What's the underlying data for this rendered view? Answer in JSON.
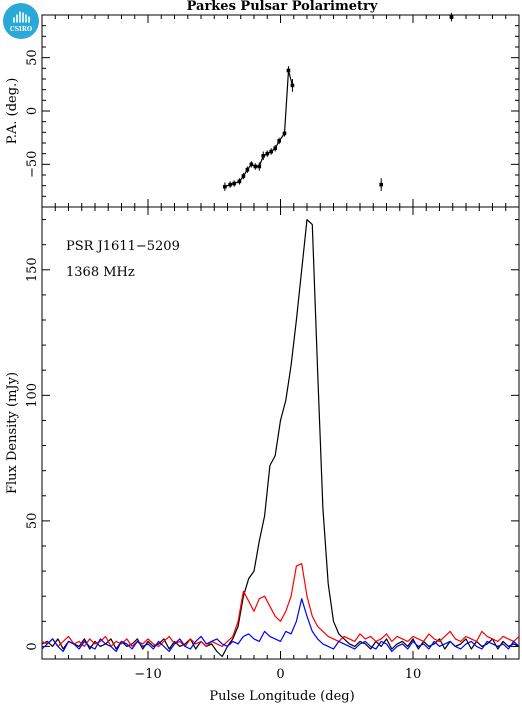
{
  "logo": {
    "text": "CSIRO",
    "color": "#2aa8d8"
  },
  "chart_data": [
    {
      "type": "scatter",
      "title": "Parkes Pulsar Polarimetry",
      "ylabel": "P.A. (deg.)",
      "xlim": [
        -18,
        18
      ],
      "ylim": [
        -90,
        90
      ],
      "yticks": [
        -50,
        0,
        50
      ],
      "points": [
        {
          "x": -4.2,
          "y": -71,
          "err": 4
        },
        {
          "x": -3.8,
          "y": -69,
          "err": 3
        },
        {
          "x": -3.5,
          "y": -68,
          "err": 3
        },
        {
          "x": -3.1,
          "y": -66,
          "err": 3
        },
        {
          "x": -2.8,
          "y": -61,
          "err": 3
        },
        {
          "x": -2.5,
          "y": -55,
          "err": 3
        },
        {
          "x": -2.2,
          "y": -50,
          "err": 3
        },
        {
          "x": -1.9,
          "y": -52,
          "err": 3
        },
        {
          "x": -1.6,
          "y": -52,
          "err": 4
        },
        {
          "x": -1.3,
          "y": -42,
          "err": 4
        },
        {
          "x": -1.0,
          "y": -40,
          "err": 3
        },
        {
          "x": -0.7,
          "y": -38,
          "err": 3
        },
        {
          "x": -0.4,
          "y": -35,
          "err": 3
        },
        {
          "x": -0.1,
          "y": -28,
          "err": 3
        },
        {
          "x": 0.3,
          "y": -21,
          "err": 3
        },
        {
          "x": 0.6,
          "y": 38,
          "err": 4
        },
        {
          "x": 0.9,
          "y": 24,
          "err": 6
        }
      ],
      "isolated_points": [
        {
          "x": 7.6,
          "y": -69,
          "err": 6
        },
        {
          "x": 12.9,
          "y": 88,
          "err": 4
        }
      ]
    },
    {
      "type": "line",
      "xlabel": "Pulse Longitude (deg)",
      "ylabel": "Flux Density (mJy)",
      "annotations": [
        "PSR J1611−5209",
        "1368 MHz"
      ],
      "xlim": [
        -18,
        18
      ],
      "ylim": [
        -5,
        175
      ],
      "xticks": [
        -10,
        0,
        10
      ],
      "yticks": [
        0,
        50,
        100,
        150
      ],
      "x_start": -18,
      "x_step": 0.4,
      "series": [
        {
          "color": "#000000",
          "values": [
            1,
            2,
            0,
            3,
            -1,
            2,
            1,
            0,
            3,
            -1,
            2,
            0,
            1,
            3,
            -1,
            2,
            0,
            1,
            3,
            -1,
            2,
            0,
            1,
            3,
            -1,
            2,
            0,
            1,
            3,
            -1,
            2,
            0,
            1,
            -2,
            -4,
            0,
            3,
            8,
            20,
            27,
            30,
            42,
            52,
            72,
            76,
            90,
            98,
            112,
            130,
            150,
            170,
            168,
            110,
            55,
            25,
            10,
            5,
            3,
            1,
            0,
            2,
            1,
            -1,
            2,
            0,
            3,
            -1,
            1,
            2,
            0,
            3,
            -1,
            2,
            0,
            1,
            3,
            -1,
            2,
            0,
            1,
            3,
            -1,
            2,
            0,
            1,
            3,
            -1,
            2,
            0,
            1,
            0
          ]
        },
        {
          "color": "#ff0000",
          "values": [
            2,
            1,
            3,
            0,
            2,
            4,
            1,
            2,
            0,
            3,
            1,
            2,
            4,
            0,
            2,
            1,
            3,
            0,
            2,
            1,
            3,
            1,
            0,
            2,
            4,
            1,
            2,
            0,
            3,
            1,
            2,
            0,
            2,
            1,
            0,
            2,
            4,
            10,
            22,
            18,
            14,
            19,
            20,
            16,
            12,
            10,
            14,
            20,
            32,
            33,
            20,
            12,
            8,
            6,
            4,
            3,
            2,
            4,
            3,
            2,
            5,
            3,
            4,
            2,
            3,
            5,
            2,
            4,
            3,
            2,
            4,
            3,
            2,
            5,
            3,
            2,
            4,
            6,
            3,
            2,
            4,
            3,
            2,
            6,
            4,
            3,
            2,
            4,
            3,
            2,
            4
          ]
        },
        {
          "color": "#0000ff",
          "values": [
            -1,
            1,
            3,
            0,
            -2,
            2,
            1,
            -1,
            2,
            0,
            -1,
            3,
            1,
            0,
            -2,
            2,
            1,
            -1,
            2,
            0,
            1,
            -1,
            2,
            0,
            -2,
            1,
            3,
            0,
            -1,
            2,
            4,
            1,
            2,
            3,
            1,
            0,
            2,
            1,
            4,
            5,
            3,
            2,
            6,
            4,
            3,
            2,
            6,
            5,
            10,
            19,
            12,
            6,
            3,
            1,
            0,
            -1,
            2,
            1,
            0,
            -1,
            1,
            2,
            0,
            -1,
            2,
            1,
            -2,
            0,
            1,
            -1,
            2,
            0,
            1,
            -1,
            2,
            0,
            1,
            2,
            0,
            -1,
            1,
            2,
            0,
            -1,
            2,
            1,
            0,
            1,
            -1,
            2,
            0
          ]
        }
      ]
    }
  ]
}
